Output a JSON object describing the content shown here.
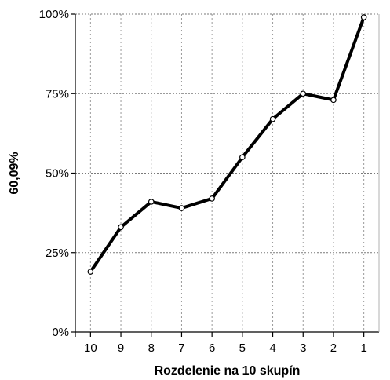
{
  "chart_data": {
    "type": "line",
    "title": "",
    "xlabel": "Rozdelenie na 10 skupín",
    "ylabel": "60,09%",
    "categories": [
      "10",
      "9",
      "8",
      "7",
      "6",
      "5",
      "4",
      "3",
      "2",
      "1"
    ],
    "series": [
      {
        "values": [
          19,
          33,
          41,
          39,
          42,
          55,
          67,
          75,
          73,
          99
        ],
        "line_color": "#000000",
        "marker": "open-circle"
      }
    ],
    "ylim": [
      0,
      100
    ],
    "yticks": [
      0,
      25,
      50,
      75,
      100
    ],
    "ytick_labels": [
      "0%",
      "25%",
      "50%",
      "75%",
      "100%"
    ],
    "grid": {
      "horizontal": "dotted",
      "vertical": "dotted"
    },
    "legend": "none"
  }
}
